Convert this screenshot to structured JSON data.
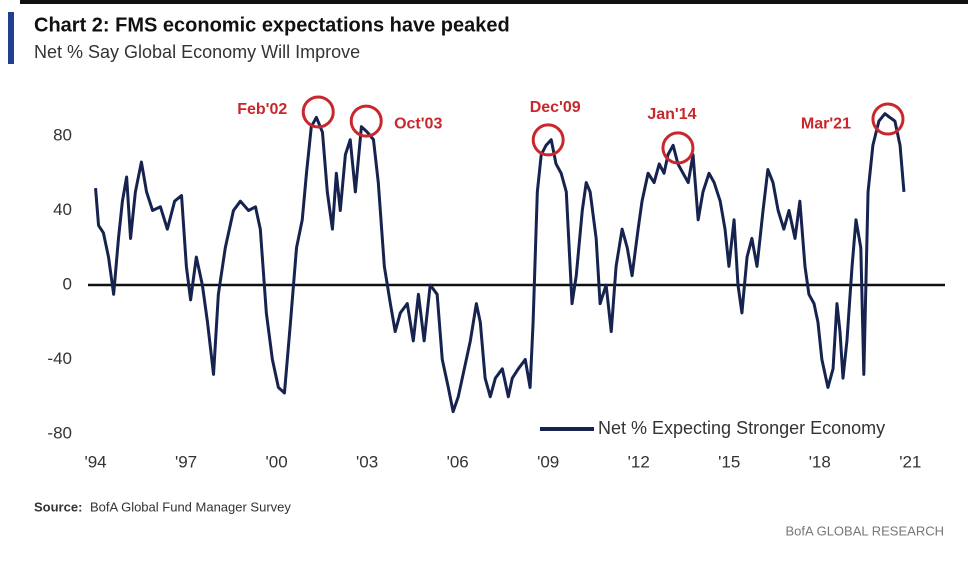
{
  "chart_data": {
    "type": "line",
    "title": "Chart 2: FMS economic expectations have peaked",
    "subtitle": "Net % Say Global Economy Will Improve",
    "source_label": "Source:",
    "source": "BofA Global Fund Manager Survey",
    "branding": "BofA GLOBAL RESEARCH",
    "legend": "lower right",
    "xlim": [
      1993.75,
      2022.15
    ],
    "ylim": [
      -88,
      100
    ],
    "xticks": [
      {
        "value": 1994,
        "label": "'94"
      },
      {
        "value": 1997,
        "label": "'97"
      },
      {
        "value": 2000,
        "label": "'00"
      },
      {
        "value": 2003,
        "label": "'03"
      },
      {
        "value": 2006,
        "label": "'06"
      },
      {
        "value": 2009,
        "label": "'09"
      },
      {
        "value": 2012,
        "label": "'12"
      },
      {
        "value": 2015,
        "label": "'15"
      },
      {
        "value": 2018,
        "label": "'18"
      },
      {
        "value": 2021,
        "label": "'21"
      }
    ],
    "yticks": [
      80,
      40,
      0,
      -40,
      -80
    ],
    "x": [
      1994.0,
      1994.1,
      1994.26,
      1994.43,
      1994.6,
      1994.76,
      1994.89,
      1995.03,
      1995.16,
      1995.32,
      1995.52,
      1995.69,
      1995.89,
      1996.15,
      1996.38,
      1996.62,
      1996.85,
      1997.01,
      1997.15,
      1997.34,
      1997.54,
      1997.71,
      1997.91,
      1998.07,
      1998.3,
      1998.57,
      1998.8,
      1999.07,
      1999.3,
      1999.46,
      1999.66,
      1999.86,
      2000.06,
      2000.26,
      2000.46,
      2000.66,
      2000.85,
      2000.99,
      2001.15,
      2001.32,
      2001.52,
      2001.68,
      2001.85,
      2001.98,
      2002.11,
      2002.28,
      2002.44,
      2002.61,
      2002.81,
      2003.01,
      2003.21,
      2003.37,
      2003.57,
      2003.77,
      2003.93,
      2004.1,
      2004.33,
      2004.53,
      2004.7,
      2004.89,
      2005.09,
      2005.32,
      2005.49,
      2005.69,
      2005.85,
      2006.02,
      2006.22,
      2006.42,
      2006.62,
      2006.75,
      2006.91,
      2007.08,
      2007.25,
      2007.48,
      2007.68,
      2007.81,
      2008.01,
      2008.24,
      2008.4,
      2008.5,
      2008.64,
      2008.77,
      2008.93,
      2009.1,
      2009.26,
      2009.43,
      2009.6,
      2009.79,
      2009.93,
      2010.13,
      2010.26,
      2010.39,
      2010.59,
      2010.72,
      2010.92,
      2011.09,
      2011.25,
      2011.45,
      2011.62,
      2011.78,
      2011.98,
      2012.11,
      2012.31,
      2012.51,
      2012.68,
      2012.84,
      2012.97,
      2013.14,
      2013.3,
      2013.47,
      2013.64,
      2013.8,
      2013.97,
      2014.13,
      2014.33,
      2014.5,
      2014.7,
      2014.86,
      2014.99,
      2015.16,
      2015.29,
      2015.42,
      2015.59,
      2015.75,
      2015.92,
      2016.12,
      2016.28,
      2016.45,
      2016.62,
      2016.81,
      2016.98,
      2017.18,
      2017.34,
      2017.51,
      2017.64,
      2017.81,
      2017.94,
      2018.07,
      2018.27,
      2018.44,
      2018.57,
      2018.67,
      2018.77,
      2018.9,
      2019.07,
      2019.2,
      2019.36,
      2019.46,
      2019.6,
      2019.76,
      2019.96,
      2020.16,
      2020.32,
      2020.49,
      2020.66,
      2020.79
    ],
    "series": [
      {
        "name": "Net % Expecting Stronger Economy",
        "color": "#16234f",
        "values": [
          52,
          32,
          28,
          15,
          -5,
          25,
          45,
          58,
          25,
          50,
          66,
          50,
          40,
          42,
          30,
          45,
          48,
          10,
          -8,
          15,
          0,
          -20,
          -48,
          -5,
          20,
          40,
          45,
          40,
          42,
          30,
          -15,
          -40,
          -55,
          -58,
          -20,
          20,
          35,
          60,
          85,
          90,
          82,
          50,
          30,
          60,
          40,
          70,
          78,
          50,
          85,
          82,
          78,
          55,
          10,
          -10,
          -25,
          -15,
          -10,
          -30,
          -5,
          -30,
          0,
          -5,
          -40,
          -55,
          -68,
          -60,
          -45,
          -30,
          -10,
          -20,
          -50,
          -60,
          -50,
          -45,
          -60,
          -50,
          -45,
          -40,
          -55,
          -20,
          50,
          70,
          75,
          78,
          65,
          60,
          50,
          -10,
          5,
          40,
          55,
          50,
          25,
          -10,
          0,
          -25,
          10,
          30,
          20,
          5,
          30,
          45,
          60,
          55,
          65,
          60,
          70,
          75,
          65,
          60,
          55,
          70,
          35,
          50,
          60,
          55,
          45,
          30,
          10,
          35,
          0,
          -15,
          15,
          25,
          10,
          40,
          62,
          55,
          40,
          30,
          40,
          25,
          45,
          10,
          -5,
          -10,
          -20,
          -40,
          -55,
          -45,
          -10,
          -25,
          -50,
          -30,
          10,
          35,
          20,
          -48,
          50,
          75,
          88,
          92,
          90,
          88,
          75,
          50
        ]
      }
    ],
    "annotations": [
      {
        "text": "Feb'02",
        "x": 2001.38,
        "y": 92.9
      },
      {
        "text": "Oct'03",
        "x": 2002.97,
        "y": 88
      },
      {
        "text": "Dec'09",
        "x": 2009.0,
        "y": 77.9
      },
      {
        "text": "Jan'14",
        "x": 2013.3,
        "y": 73.6
      },
      {
        "text": "Mar'21",
        "x": 2020.26,
        "y": 89.1
      }
    ],
    "annotation_color": "#c8282d"
  }
}
